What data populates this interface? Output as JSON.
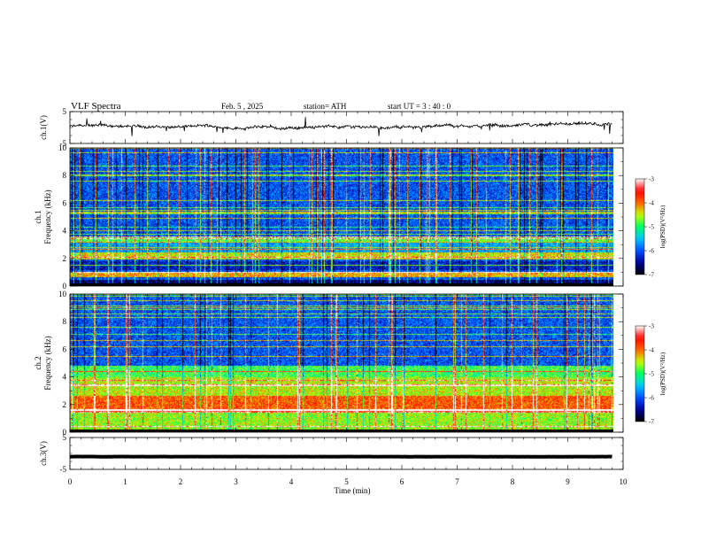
{
  "header": {
    "title": "VLF  Spectra",
    "date": "Feb. 5  , 2025",
    "station": "station= ATH",
    "start": "start  UT  =   3  : 40 : 0"
  },
  "colors": {
    "background": "#ffffff",
    "axes": "#000000",
    "colormap": [
      "#000000",
      "#00009a",
      "#0050ff",
      "#00c8ff",
      "#00ff64",
      "#c8ff00",
      "#ff6400",
      "#ff0000",
      "#ffffff"
    ]
  },
  "chart_data": [
    {
      "type": "line",
      "name": "ch1-waveform",
      "ylabel": "ch.1(V)",
      "ylim": [
        -5,
        5
      ],
      "yticks": [
        "5",
        "-5"
      ],
      "xlim": [
        0,
        10
      ],
      "description_values": {
        "baseline": 0.3,
        "noise_amplitude": 1.2,
        "spikes_max": 3.0
      }
    },
    {
      "type": "heatmap",
      "name": "ch1-spectrogram",
      "ylabel_top": "ch.1",
      "ylabel": "Frequency (kHz)",
      "ylim": [
        0,
        10
      ],
      "yticks": [
        "0",
        "2",
        "4",
        "6",
        "8",
        "10"
      ],
      "xlim": [
        0,
        9.8
      ],
      "colorbar": {
        "label": "log(PSD)(V²/Hz)",
        "range": [
          -7,
          -3
        ],
        "ticks": [
          "-3",
          "-4",
          "-5",
          "-6",
          "-7"
        ]
      },
      "bands_khz": [
        {
          "from": 0,
          "to": 0.4,
          "level": -6.6
        },
        {
          "from": 0.6,
          "to": 1.0,
          "level": -4.2
        },
        {
          "from": 1.1,
          "to": 1.8,
          "level": -6.3
        },
        {
          "from": 1.9,
          "to": 2.4,
          "level": -4.4
        },
        {
          "from": 2.4,
          "to": 3.2,
          "level": -5.6
        },
        {
          "from": 3.2,
          "to": 3.6,
          "level": -4.8
        },
        {
          "from": 3.6,
          "to": 10,
          "level": -6.0
        }
      ]
    },
    {
      "type": "heatmap",
      "name": "ch2-spectrogram",
      "ylabel_top": "ch.2",
      "ylabel": "Frequency (kHz)",
      "ylim": [
        0,
        10
      ],
      "yticks": [
        "0",
        "2",
        "4",
        "6",
        "8",
        "10"
      ],
      "xlim": [
        0,
        9.8
      ],
      "colorbar": {
        "label": "log(PSD)(V²/Hz)",
        "range": [
          -7,
          -3
        ],
        "ticks": [
          "-3",
          "-4",
          "-5",
          "-6",
          "-7"
        ]
      },
      "bands_khz": [
        {
          "from": 0,
          "to": 1.5,
          "level": -4.6
        },
        {
          "from": 1.5,
          "to": 2.6,
          "level": -3.9
        },
        {
          "from": 2.6,
          "to": 4.0,
          "level": -4.5
        },
        {
          "from": 4.0,
          "to": 4.8,
          "level": -4.9
        },
        {
          "from": 4.8,
          "to": 10,
          "level": -6.0
        }
      ]
    },
    {
      "type": "line",
      "name": "ch3-waveform",
      "ylabel": "ch.3(V)",
      "ylim": [
        -5,
        5
      ],
      "yticks": [
        "5",
        "-5"
      ],
      "xlim": [
        0,
        10
      ],
      "description_values": {
        "baseline": -1.0,
        "noise_amplitude": 0.05
      }
    }
  ],
  "xaxis": {
    "label": "Time  (min)",
    "ticks": [
      "0",
      "1",
      "2",
      "3",
      "4",
      "5",
      "6",
      "7",
      "8",
      "9",
      "10"
    ]
  }
}
